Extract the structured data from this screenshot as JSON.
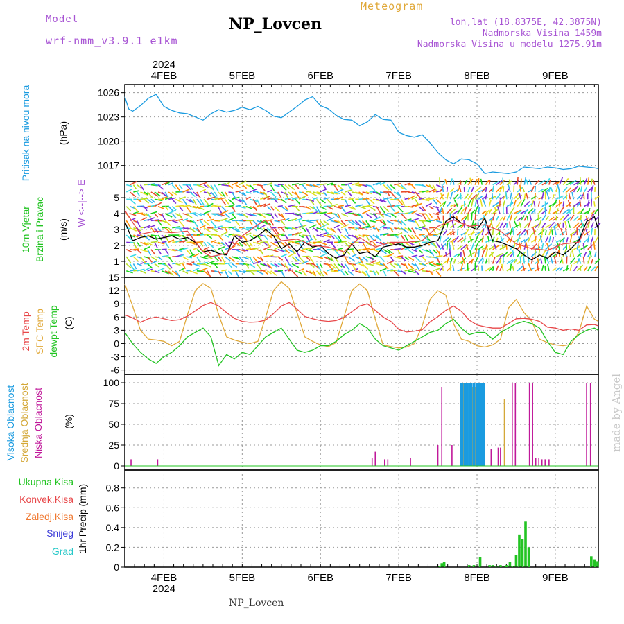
{
  "header": {
    "model_label": "Model",
    "model_name": "wrf-nmm_v3.9.1 e1km",
    "title": "NP_Lovcen",
    "meteogram_label": "Meteogram",
    "coords": "lon,lat (18.8375E, 42.3875N)",
    "elevation": "Nadmorska Visina 1459m",
    "model_elevation": "Nadmorska Visina u modelu 1275.91m",
    "footer_title": "NP_Lovcen",
    "watermark": "made by Angel"
  },
  "colors": {
    "pressure": "#1a9be0",
    "temp2m": "#e8484a",
    "sfc": "#e0a838",
    "dewpt": "#22c422",
    "high_cloud": "#1a9be0",
    "mid_cloud": "#d4a838",
    "low_cloud": "#c0189a",
    "precip": "#22c422",
    "purple": "#a855d4"
  },
  "chart_data": [
    {
      "type": "line",
      "panel": "pressure",
      "ylabel_lines": [
        "Pritisak na nivou mora"
      ],
      "unit": "(hPa)",
      "ylim": [
        1015,
        1027
      ],
      "yticks": [
        1017,
        1020,
        1023,
        1026
      ],
      "x_days": [
        "4FEB",
        "5FEB",
        "6FEB",
        "7FEB",
        "8FEB",
        "9FEB"
      ],
      "x_year": "2024",
      "xlim_days": [
        3.5,
        9.55
      ],
      "series": [
        {
          "x": [
            3.5,
            3.55,
            3.6,
            3.7,
            3.8,
            3.9,
            4.0,
            4.1,
            4.2,
            4.3,
            4.4,
            4.5,
            4.6,
            4.7,
            4.8,
            4.9,
            5.0,
            5.1,
            5.2,
            5.3,
            5.4,
            5.5,
            5.6,
            5.7,
            5.8,
            5.9,
            6.0,
            6.1,
            6.2,
            6.3,
            6.4,
            6.5,
            6.6,
            6.7,
            6.8,
            6.9,
            7.0,
            7.1,
            7.2,
            7.3,
            7.4,
            7.5,
            7.6,
            7.7,
            7.8,
            7.9,
            8.0,
            8.1,
            8.2,
            8.3,
            8.4,
            8.5,
            8.6,
            8.7,
            8.8,
            8.9,
            9.0,
            9.1,
            9.2,
            9.3,
            9.4,
            9.5,
            9.55
          ],
          "values": [
            1025.5,
            1024.0,
            1023.7,
            1024.4,
            1025.3,
            1025.8,
            1024.3,
            1023.8,
            1023.5,
            1023.4,
            1023.0,
            1022.6,
            1023.4,
            1023.9,
            1023.6,
            1023.8,
            1024.2,
            1023.9,
            1024.3,
            1023.8,
            1023.1,
            1022.9,
            1023.6,
            1024.3,
            1025.1,
            1025.5,
            1024.4,
            1024.0,
            1023.2,
            1022.7,
            1022.6,
            1021.9,
            1022.4,
            1023.3,
            1022.7,
            1022.6,
            1021.1,
            1020.7,
            1020.5,
            1020.8,
            1019.8,
            1018.6,
            1017.7,
            1017.2,
            1017.8,
            1017.7,
            1017.2,
            1016.0,
            1016.2,
            1016.1,
            1016.0,
            1016.2,
            1016.8,
            1016.7,
            1016.6,
            1016.8,
            1016.7,
            1016.5,
            1016.6,
            1016.9,
            1016.8,
            1016.7,
            1016.6
          ]
        }
      ]
    },
    {
      "type": "line",
      "panel": "wind",
      "ylabel_lines": [
        "10m Vjetar",
        "Brzina i Pravac"
      ],
      "unit": "(m/s)",
      "compass": "W <--|--> E",
      "ylim": [
        0,
        6
      ],
      "yticks": [
        1,
        2,
        3,
        4,
        5
      ],
      "series": [
        {
          "name": "speed",
          "x": [
            3.5,
            3.6,
            3.7,
            3.8,
            3.9,
            4.0,
            4.1,
            4.2,
            4.3,
            4.4,
            4.5,
            4.6,
            4.7,
            4.8,
            4.9,
            5.0,
            5.1,
            5.2,
            5.3,
            5.4,
            5.5,
            5.6,
            5.7,
            5.8,
            5.9,
            6.0,
            6.1,
            6.2,
            6.3,
            6.4,
            6.5,
            6.6,
            6.7,
            6.8,
            6.9,
            7.0,
            7.1,
            7.2,
            7.3,
            7.4,
            7.5,
            7.6,
            7.7,
            7.8,
            7.9,
            8.0,
            8.1,
            8.2,
            8.3,
            8.4,
            8.5,
            8.6,
            8.7,
            8.8,
            8.9,
            9.0,
            9.1,
            9.2,
            9.3,
            9.4,
            9.5,
            9.55
          ],
          "values": [
            3.5,
            2.3,
            2.5,
            2.6,
            2.4,
            2.5,
            2.6,
            2.4,
            2.5,
            2.2,
            1.6,
            1.7,
            1.5,
            1.4,
            2.6,
            2.2,
            2.3,
            2.6,
            3.0,
            2.6,
            1.8,
            2.1,
            1.6,
            2.2,
            1.9,
            2.0,
            1.5,
            1.2,
            1.4,
            2.1,
            1.5,
            1.6,
            1.3,
            1.9,
            2.0,
            2.1,
            1.9,
            1.9,
            2.0,
            2.2,
            2.3,
            3.5,
            3.8,
            3.4,
            3.2,
            3.0,
            3.7,
            2.3,
            2.2,
            2.0,
            1.8,
            1.4,
            1.1,
            1.4,
            1.2,
            1.6,
            1.4,
            1.8,
            2.3,
            3.5,
            3.8,
            3.0
          ]
        },
        {
          "name": "gust",
          "x": [
            3.5,
            3.7,
            3.9,
            4.1,
            4.3,
            4.5,
            4.6,
            4.8,
            5.0,
            5.2,
            5.3,
            5.5,
            5.7,
            5.9,
            6.1,
            6.3,
            6.5,
            6.7,
            6.9,
            7.1,
            7.3,
            7.5,
            7.7,
            7.9,
            8.1,
            8.3,
            8.5,
            8.7,
            8.9,
            9.1,
            9.3,
            9.5
          ],
          "values": [
            4.2,
            2.7,
            2.9,
            2.8,
            2.9,
            1.6,
            1.3,
            1.5,
            2.6,
            3.3,
            3.6,
            2.3,
            2.4,
            2.0,
            1.9,
            1.6,
            2.5,
            1.9,
            2.2,
            2.2,
            2.3,
            3.2,
            3.6,
            3.2,
            3.3,
            2.9,
            2.1,
            1.8,
            1.7,
            2.1,
            2.2,
            4.2
          ]
        }
      ]
    },
    {
      "type": "line",
      "panel": "temperature",
      "ylabel_lines": [
        "2m Temp",
        "SFC Temp",
        "dewpt Temp"
      ],
      "unit": "(C)",
      "ylim": [
        -7,
        15
      ],
      "yticks": [
        -6,
        -3,
        0,
        3,
        6,
        9,
        12,
        15
      ],
      "series": [
        {
          "name": "2m Temp",
          "x": [
            3.5,
            3.6,
            3.7,
            3.8,
            3.9,
            4.0,
            4.1,
            4.2,
            4.3,
            4.4,
            4.5,
            4.6,
            4.7,
            4.8,
            4.9,
            5.0,
            5.1,
            5.2,
            5.3,
            5.4,
            5.5,
            5.6,
            5.7,
            5.8,
            5.9,
            6.0,
            6.1,
            6.2,
            6.3,
            6.4,
            6.5,
            6.6,
            6.7,
            6.8,
            6.9,
            7.0,
            7.1,
            7.2,
            7.3,
            7.4,
            7.5,
            7.6,
            7.7,
            7.8,
            7.9,
            8.0,
            8.1,
            8.2,
            8.3,
            8.4,
            8.5,
            8.6,
            8.7,
            8.8,
            8.9,
            9.0,
            9.1,
            9.2,
            9.3,
            9.4,
            9.5,
            9.55
          ],
          "values": [
            6.5,
            5.8,
            4.8,
            5.6,
            6.0,
            5.6,
            5.2,
            5.4,
            6.2,
            7.4,
            8.6,
            9.3,
            8.5,
            7.0,
            5.7,
            5.0,
            4.8,
            4.9,
            5.3,
            6.8,
            8.5,
            9.3,
            7.8,
            6.1,
            5.6,
            5.2,
            5.0,
            5.2,
            5.9,
            7.2,
            8.5,
            9.0,
            7.5,
            6.0,
            5.0,
            3.2,
            2.6,
            2.8,
            3.1,
            4.9,
            6.1,
            7.5,
            8.5,
            7.3,
            5.3,
            4.2,
            3.8,
            3.5,
            3.5,
            4.5,
            5.6,
            5.7,
            5.5,
            5.0,
            3.7,
            3.5,
            3.0,
            3.3,
            3.0,
            4.2,
            4.3,
            4.0
          ]
        },
        {
          "name": "SFC Temp",
          "x": [
            3.5,
            3.6,
            3.7,
            3.8,
            3.9,
            4.0,
            4.1,
            4.2,
            4.3,
            4.4,
            4.5,
            4.6,
            4.7,
            4.8,
            4.9,
            5.0,
            5.1,
            5.2,
            5.3,
            5.4,
            5.5,
            5.6,
            5.7,
            5.8,
            5.9,
            6.0,
            6.1,
            6.2,
            6.3,
            6.4,
            6.5,
            6.6,
            6.7,
            6.8,
            6.9,
            7.0,
            7.1,
            7.2,
            7.3,
            7.4,
            7.5,
            7.6,
            7.7,
            7.8,
            7.9,
            8.0,
            8.1,
            8.2,
            8.3,
            8.4,
            8.5,
            8.6,
            8.7,
            8.8,
            8.9,
            9.0,
            9.1,
            9.2,
            9.3,
            9.4,
            9.5,
            9.55
          ],
          "values": [
            13.5,
            8.5,
            3.0,
            1.0,
            0.8,
            0.5,
            -0.5,
            0.5,
            6.5,
            12.0,
            13.6,
            12.5,
            6.5,
            1.5,
            0.8,
            0.3,
            0.0,
            0.5,
            6.0,
            12.0,
            14.0,
            12.5,
            7.0,
            1.5,
            0.5,
            -0.3,
            -0.7,
            0.2,
            6.0,
            12.0,
            13.5,
            12.0,
            5.5,
            -0.3,
            -0.7,
            -1.0,
            -0.8,
            0.0,
            4.0,
            10.0,
            12.0,
            11.0,
            4.5,
            1.0,
            0.5,
            -0.5,
            -0.8,
            -0.3,
            1.0,
            8.0,
            10.0,
            7.0,
            5.0,
            1.0,
            0.2,
            -0.3,
            -0.5,
            -0.2,
            2.5,
            8.5,
            5.5,
            5.0
          ]
        },
        {
          "name": "dewpt Temp",
          "x": [
            3.5,
            3.6,
            3.7,
            3.8,
            3.9,
            4.0,
            4.1,
            4.2,
            4.3,
            4.4,
            4.5,
            4.6,
            4.7,
            4.8,
            4.9,
            5.0,
            5.1,
            5.2,
            5.3,
            5.4,
            5.5,
            5.6,
            5.7,
            5.8,
            5.9,
            6.0,
            6.1,
            6.2,
            6.3,
            6.4,
            6.5,
            6.6,
            6.7,
            6.8,
            6.9,
            7.0,
            7.1,
            7.2,
            7.3,
            7.4,
            7.5,
            7.6,
            7.7,
            7.8,
            7.9,
            8.0,
            8.1,
            8.2,
            8.3,
            8.4,
            8.5,
            8.6,
            8.7,
            8.8,
            8.9,
            9.0,
            9.1,
            9.2,
            9.3,
            9.4,
            9.5,
            9.55
          ],
          "values": [
            2.5,
            0.0,
            -2.0,
            -3.5,
            -4.5,
            -3.0,
            -2.0,
            -0.5,
            1.5,
            2.5,
            3.5,
            1.5,
            -5.0,
            -2.5,
            -3.5,
            -2.0,
            -2.5,
            -0.5,
            1.5,
            2.5,
            3.5,
            1.0,
            -1.5,
            -2.0,
            -1.5,
            -0.5,
            -0.5,
            0.5,
            2.0,
            3.0,
            4.5,
            3.5,
            1.0,
            -0.5,
            -1.0,
            -1.5,
            -0.5,
            0.5,
            1.5,
            2.5,
            3.0,
            4.5,
            5.5,
            3.5,
            2.0,
            2.5,
            2.5,
            1.0,
            2.5,
            3.5,
            4.5,
            5.0,
            4.5,
            3.5,
            0.5,
            -2.0,
            -2.5,
            0.5,
            2.0,
            3.0,
            3.5,
            3.0
          ]
        }
      ]
    },
    {
      "type": "bar",
      "panel": "cloud",
      "ylabel_lines": [
        "Visoka Oblacnost",
        "Srednja Oblacnost",
        "Niska Oblacnost"
      ],
      "unit": "(%)",
      "ylim": [
        -5,
        110
      ],
      "yticks": [
        0,
        25,
        50,
        75,
        100
      ],
      "series": [
        {
          "name": "Niska Oblacnost",
          "x": [
            3.58,
            3.92,
            6.66,
            6.7,
            6.82,
            6.86,
            7.15,
            7.5,
            7.55,
            7.68,
            8.18,
            8.27,
            8.3,
            8.45,
            8.49,
            8.67,
            8.71,
            8.75,
            8.79,
            8.83,
            8.87,
            8.92,
            9.4,
            9.45
          ],
          "values": [
            8,
            8,
            10,
            17,
            8,
            8,
            10,
            25,
            95,
            25,
            20,
            22,
            22,
            100,
            100,
            100,
            100,
            10,
            10,
            8,
            8,
            8,
            100,
            100
          ]
        },
        {
          "name": "Srednja Oblacnost",
          "x": [
            7.83,
            7.87,
            7.9,
            7.94,
            7.98,
            8.04,
            8.08,
            8.35
          ],
          "values": [
            100,
            100,
            100,
            95,
            95,
            100,
            100,
            80
          ]
        },
        {
          "name": "Visoka Oblacnost",
          "x": [
            7.8,
            7.81,
            7.84,
            7.86,
            7.88,
            7.91,
            7.93,
            7.96,
            7.99,
            8.01,
            8.03,
            8.05,
            8.07,
            8.09
          ],
          "values": [
            100,
            100,
            100,
            100,
            100,
            100,
            100,
            100,
            100,
            100,
            100,
            100,
            100,
            100
          ]
        }
      ]
    },
    {
      "type": "bar",
      "panel": "precip",
      "ylabel_lines": [
        "Ukupna  Kisa",
        "Konvek.Kisa",
        "Zaledj.Kisa",
        "Snijeg",
        "Grad"
      ],
      "unit": "1hr Precip (mm)",
      "ylim": [
        0,
        0.98
      ],
      "yticks": [
        0,
        0.2,
        0.4,
        0.6,
        0.8
      ],
      "series": [
        {
          "name": "Ukupna  Kisa",
          "x": [
            7.52,
            7.55,
            7.58,
            7.9,
            7.96,
            8.04,
            8.16,
            8.2,
            8.25,
            8.3,
            8.35,
            8.38,
            8.42,
            8.46,
            8.5,
            8.54,
            8.58,
            8.62,
            8.66,
            9.46,
            9.5,
            9.54
          ],
          "values": [
            0.01,
            0.04,
            0.05,
            0.02,
            0.02,
            0.1,
            0.02,
            0.02,
            0.01,
            0.02,
            0.01,
            0.02,
            0.05,
            0.01,
            0.12,
            0.33,
            0.28,
            0.46,
            0.2,
            0.11,
            0.08,
            0.06
          ]
        }
      ]
    }
  ]
}
